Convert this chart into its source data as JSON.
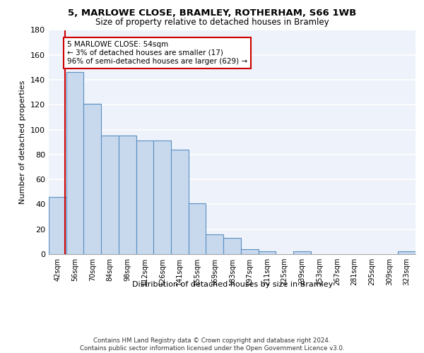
{
  "title1": "5, MARLOWE CLOSE, BRAMLEY, ROTHERHAM, S66 1WB",
  "title2": "Size of property relative to detached houses in Bramley",
  "xlabel": "Distribution of detached houses by size in Bramley",
  "ylabel": "Number of detached properties",
  "categories": [
    "42sqm",
    "56sqm",
    "70sqm",
    "84sqm",
    "98sqm",
    "112sqm",
    "126sqm",
    "141sqm",
    "155sqm",
    "169sqm",
    "183sqm",
    "197sqm",
    "211sqm",
    "225sqm",
    "239sqm",
    "253sqm",
    "267sqm",
    "281sqm",
    "295sqm",
    "309sqm",
    "323sqm"
  ],
  "bar_heights": [
    46,
    146,
    121,
    95,
    95,
    91,
    91,
    84,
    41,
    16,
    13,
    4,
    2,
    0,
    2,
    0,
    0,
    0,
    0,
    0,
    2
  ],
  "bar_color": "#c8d9ee",
  "bar_edge_color": "#5a8fc2",
  "bar_edge_width": 0.8,
  "vline_color": "#cc0000",
  "vline_x": 0.93,
  "annotation_text": "5 MARLOWE CLOSE: 54sqm\n← 3% of detached houses are smaller (17)\n96% of semi-detached houses are larger (629) →",
  "ylim": [
    0,
    180
  ],
  "yticks": [
    0,
    20,
    40,
    60,
    80,
    100,
    120,
    140,
    160,
    180
  ],
  "bg_color": "#eef2fa",
  "grid_color": "white",
  "footer": "Contains HM Land Registry data © Crown copyright and database right 2024.\nContains public sector information licensed under the Open Government Licence v3.0."
}
